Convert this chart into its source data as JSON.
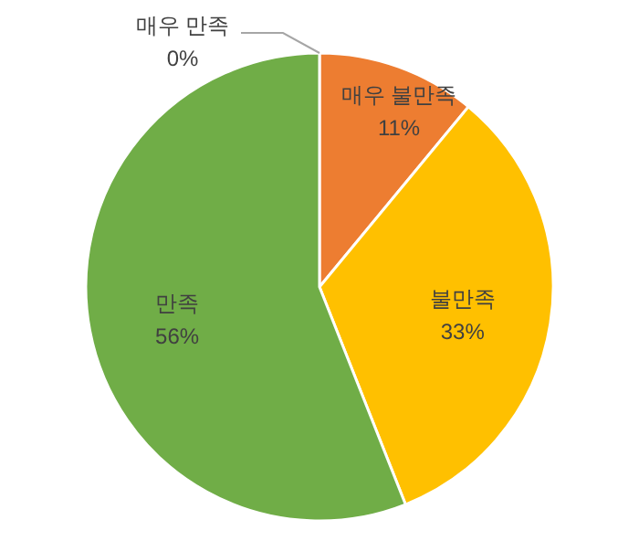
{
  "chart_data": {
    "type": "pie",
    "categories": [
      "매우 불만족",
      "불만족",
      "만족",
      "매우 만족"
    ],
    "values": [
      11,
      33,
      56,
      0
    ],
    "colors": [
      "#ed7d31",
      "#ffc000",
      "#70ad47",
      null
    ],
    "value_labels": [
      "11%",
      "33%",
      "56%",
      "0%"
    ]
  }
}
